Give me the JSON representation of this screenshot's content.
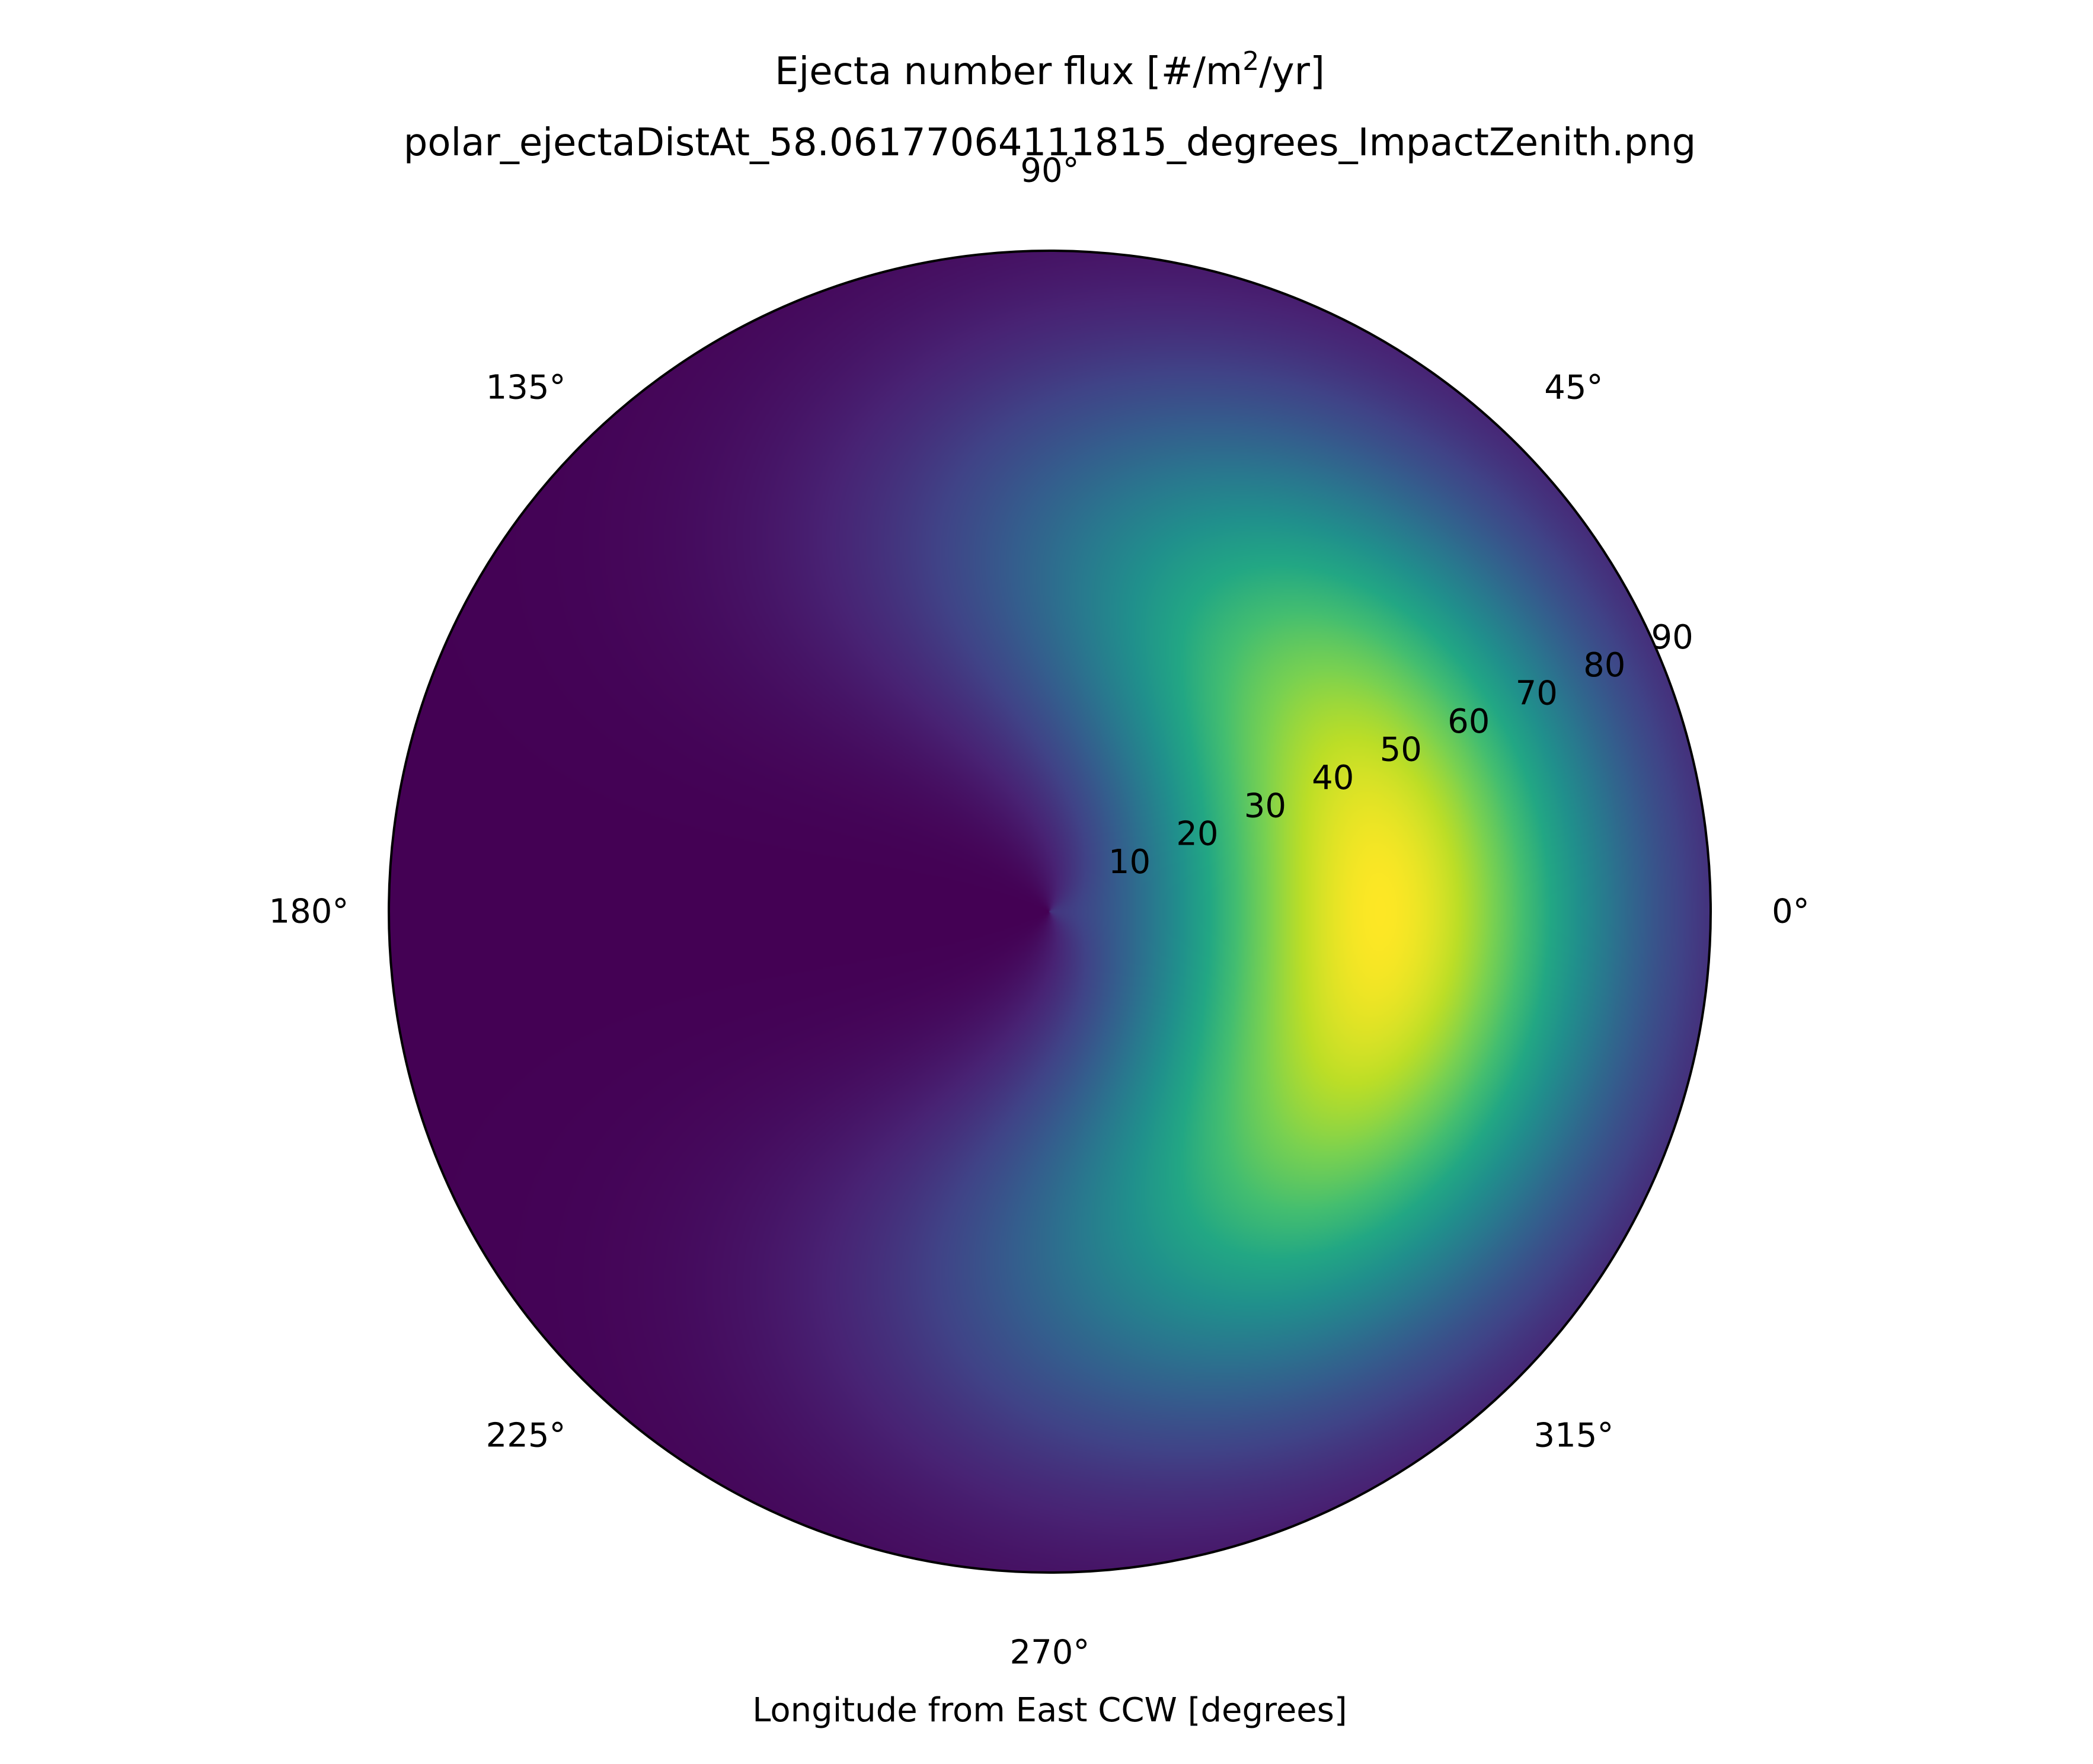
{
  "chart_data": {
    "type": "heatmap",
    "projection": "polar",
    "title_line1": "Ejecta number flux [#/m",
    "title_superscript": "2",
    "title_line1_suffix": "/yr]",
    "title_line2": "polar_ejectaDistAt_58.06177064111815_degrees_ImpactZenith.png",
    "xlabel": "Longitude from East CCW [degrees]",
    "angular_tick_labels": [
      "0°",
      "45°",
      "90°",
      "135°",
      "180°",
      "225°",
      "270°",
      "315°"
    ],
    "angular_ticks_deg": [
      0,
      45,
      90,
      135,
      180,
      225,
      270,
      315
    ],
    "radial_tick_labels": [
      "10",
      "20",
      "30",
      "40",
      "50",
      "60",
      "70",
      "80",
      "90"
    ],
    "radial_ticks": [
      10,
      20,
      30,
      40,
      50,
      60,
      70,
      80,
      90
    ],
    "rlim": [
      0,
      90
    ],
    "colormap": "viridis",
    "grid": false,
    "peak": {
      "azimuth_deg": 0,
      "radius": 45
    },
    "field_model": {
      "radial_center": 45,
      "radial_width": 23,
      "azimuth_cos_power": 1.5,
      "azimuth_floor": 0.0
    }
  }
}
